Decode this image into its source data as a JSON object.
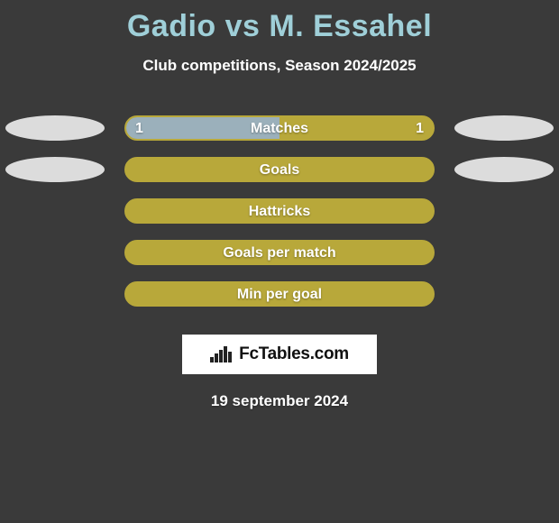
{
  "title": "Gadio vs M. Essahel",
  "subtitle": "Club competitions, Season 2024/2025",
  "footer_date": "19 september 2024",
  "brand": "FcTables.com",
  "colors": {
    "title": "#9fcfd8",
    "subtitle": "#ffffff",
    "background": "#3a3a3a",
    "left_player": "#9bb0bb",
    "right_player": "#b8a83a",
    "bar_border": "#b8a83a",
    "bar_text": "#ffffff",
    "photo_placeholder": "#dcdcdc",
    "logo_bg": "#ffffff",
    "logo_fg": "#111111"
  },
  "metrics": [
    {
      "label": "Matches",
      "left_value": "1",
      "right_value": "1",
      "left_pct": 50,
      "left_color": "#9bb0bb",
      "right_color": "#b8a83a",
      "show_left_photo": true,
      "show_right_photo": true
    },
    {
      "label": "Goals",
      "left_value": "",
      "right_value": "",
      "left_pct": 0,
      "left_color": "#9bb0bb",
      "right_color": "#b8a83a",
      "show_left_photo": true,
      "show_right_photo": true
    },
    {
      "label": "Hattricks",
      "left_value": "",
      "right_value": "",
      "left_pct": 0,
      "left_color": "#9bb0bb",
      "right_color": "#b8a83a",
      "show_left_photo": false,
      "show_right_photo": false
    },
    {
      "label": "Goals per match",
      "left_value": "",
      "right_value": "",
      "left_pct": 0,
      "left_color": "#9bb0bb",
      "right_color": "#b8a83a",
      "show_left_photo": false,
      "show_right_photo": false
    },
    {
      "label": "Min per goal",
      "left_value": "",
      "right_value": "",
      "left_pct": 0,
      "left_color": "#9bb0bb",
      "right_color": "#b8a83a",
      "show_left_photo": false,
      "show_right_photo": false
    }
  ]
}
